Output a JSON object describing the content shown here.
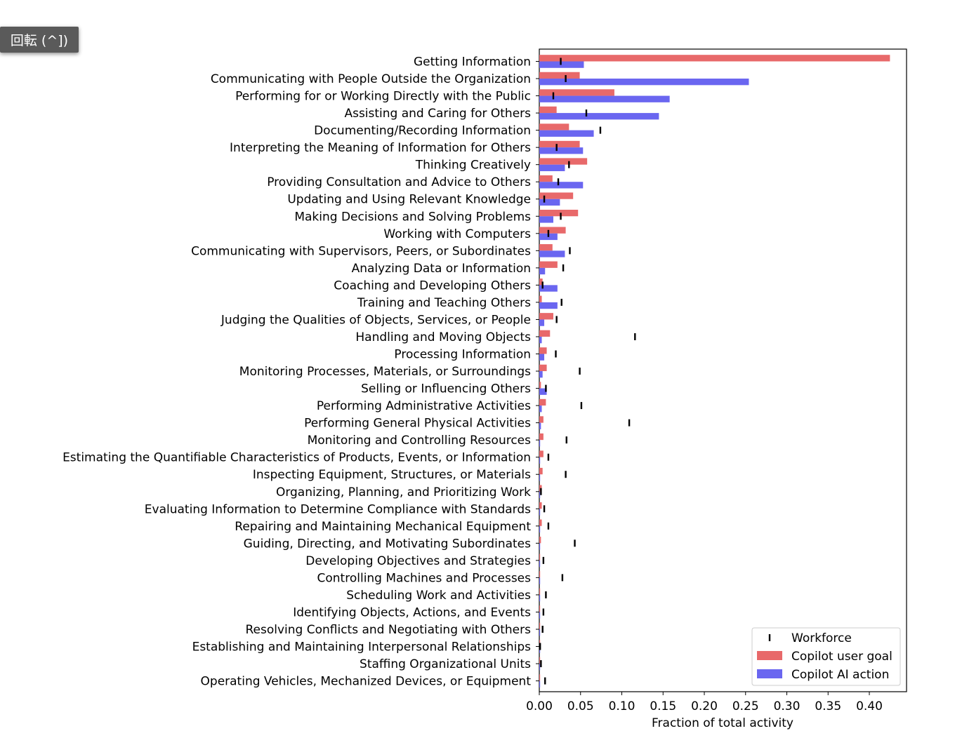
{
  "overlay": {
    "rotate_label": "回転 (^])"
  },
  "chart_data": {
    "type": "bar",
    "orientation": "horizontal",
    "title": "",
    "xlabel": "Fraction of total activity",
    "ylabel": "",
    "xlim": [
      0,
      0.445
    ],
    "xticks": [
      "0.00",
      "0.05",
      "0.10",
      "0.15",
      "0.20",
      "0.25",
      "0.30",
      "0.35",
      "0.40"
    ],
    "legend": {
      "position": "lower-right",
      "entries": [
        "Workforce",
        "Copilot user goal",
        "Copilot AI action"
      ]
    },
    "colors": {
      "user_goal": "#e8696a",
      "ai_action": "#6a66f0",
      "workforce": "#000000"
    },
    "categories": [
      "Getting Information",
      "Communicating with People Outside the Organization",
      "Performing for or Working Directly with the Public",
      "Assisting and Caring for Others",
      "Documenting/Recording Information",
      "Interpreting the Meaning of Information for Others",
      "Thinking Creatively",
      "Providing Consultation and Advice to Others",
      "Updating and Using Relevant Knowledge",
      "Making Decisions and Solving Problems",
      "Working with Computers",
      "Communicating with Supervisors, Peers, or Subordinates",
      "Analyzing Data or Information",
      "Coaching and Developing Others",
      "Training and Teaching Others",
      "Judging the Qualities of Objects, Services, or People",
      "Handling and Moving Objects",
      "Processing Information",
      "Monitoring Processes, Materials, or Surroundings",
      "Selling or Influencing Others",
      "Performing Administrative Activities",
      "Performing General Physical Activities",
      "Monitoring and Controlling Resources",
      "Estimating the Quantifiable Characteristics of Products, Events, or Information",
      "Inspecting Equipment, Structures, or Materials",
      "Organizing, Planning, and Prioritizing Work",
      "Evaluating Information to Determine Compliance with Standards",
      "Repairing and Maintaining Mechanical Equipment",
      "Guiding, Directing, and Motivating Subordinates",
      "Developing Objectives and Strategies",
      "Controlling Machines and Processes",
      "Scheduling Work and Activities",
      "Identifying Objects, Actions, and Events",
      "Resolving Conflicts and Negotiating with Others",
      "Establishing and Maintaining Interpersonal Relationships",
      "Staffing Organizational Units",
      "Operating Vehicles, Mechanized Devices, or Equipment"
    ],
    "series": [
      {
        "name": "Copilot user goal",
        "values": [
          0.425,
          0.049,
          0.091,
          0.021,
          0.036,
          0.049,
          0.058,
          0.016,
          0.041,
          0.047,
          0.032,
          0.016,
          0.022,
          0.004,
          0.003,
          0.017,
          0.013,
          0.009,
          0.009,
          0.002,
          0.008,
          0.005,
          0.005,
          0.005,
          0.004,
          0.003,
          0.003,
          0.003,
          0.002,
          0.001,
          0.001,
          0.001,
          0.001,
          0.001,
          0.001,
          0.001,
          0.001
        ]
      },
      {
        "name": "Copilot AI action",
        "values": [
          0.054,
          0.254,
          0.158,
          0.145,
          0.066,
          0.053,
          0.031,
          0.053,
          0.025,
          0.017,
          0.022,
          0.031,
          0.007,
          0.022,
          0.022,
          0.006,
          0.003,
          0.006,
          0.004,
          0.009,
          0.003,
          0.002,
          0.001,
          0.001,
          0.001,
          0.001,
          0.001,
          0.001,
          0.001,
          0.001,
          0.001,
          0.001,
          0.001,
          0.001,
          0.001,
          0.001,
          0.001
        ]
      },
      {
        "name": "Workforce",
        "values": [
          0.026,
          0.032,
          0.017,
          0.057,
          0.074,
          0.021,
          0.036,
          0.023,
          0.006,
          0.026,
          0.011,
          0.037,
          0.029,
          0.004,
          0.027,
          0.021,
          0.116,
          0.02,
          0.049,
          0.008,
          0.051,
          0.109,
          0.033,
          0.011,
          0.032,
          0.002,
          0.006,
          0.011,
          0.043,
          0.005,
          0.028,
          0.008,
          0.005,
          0.004,
          0.001,
          0.002,
          0.007
        ]
      }
    ]
  }
}
